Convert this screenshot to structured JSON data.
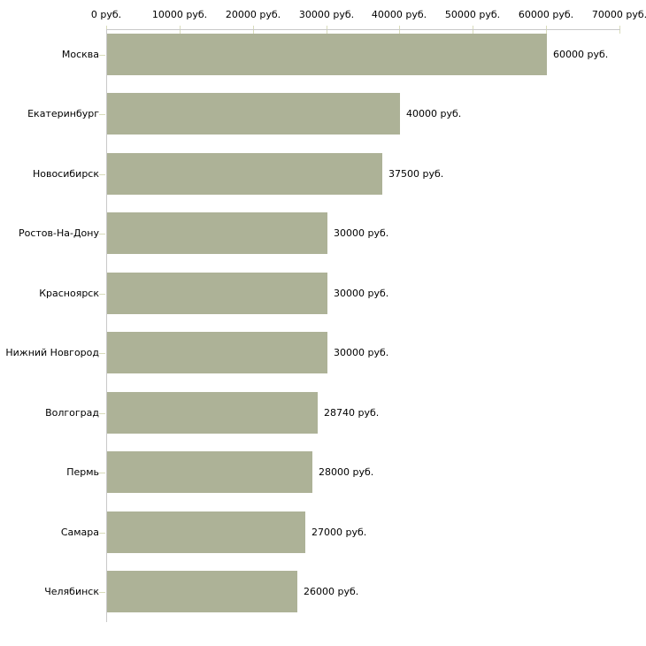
{
  "chart_data": {
    "type": "bar",
    "orientation": "horizontal",
    "title": "",
    "xlabel": "",
    "ylabel": "",
    "categories": [
      "Москва",
      "Екатеринбург",
      "Новосибирск",
      "Ростов-На-Дону",
      "Красноярск",
      "Нижний Новгород",
      "Волгоград",
      "Пермь",
      "Самара",
      "Челябинск"
    ],
    "values": [
      60000,
      40000,
      37500,
      30000,
      30000,
      30000,
      28740,
      28000,
      27000,
      26000
    ],
    "value_labels": [
      "60000 руб.",
      "40000 руб.",
      "37500 руб.",
      "30000 руб.",
      "30000 руб.",
      "30000 руб.",
      "28740 руб.",
      "28000 руб.",
      "27000 руб.",
      "26000 руб."
    ],
    "x_axis": {
      "position": "top",
      "min": 0,
      "max": 70000,
      "tick_values": [
        0,
        10000,
        20000,
        30000,
        40000,
        50000,
        60000,
        70000
      ],
      "tick_labels": [
        "0 руб.",
        "10000 руб.",
        "20000 руб.",
        "30000 руб.",
        "40000 руб.",
        "50000 руб.",
        "60000 руб.",
        "70000 руб."
      ]
    },
    "grid": false,
    "legend": false,
    "colors": {
      "bar_fill": "#adb297",
      "axis_line": "#c9c9c9",
      "tick_mark": "#d9dcبb",
      "text": "#000000",
      "background": "#ffffff"
    }
  }
}
